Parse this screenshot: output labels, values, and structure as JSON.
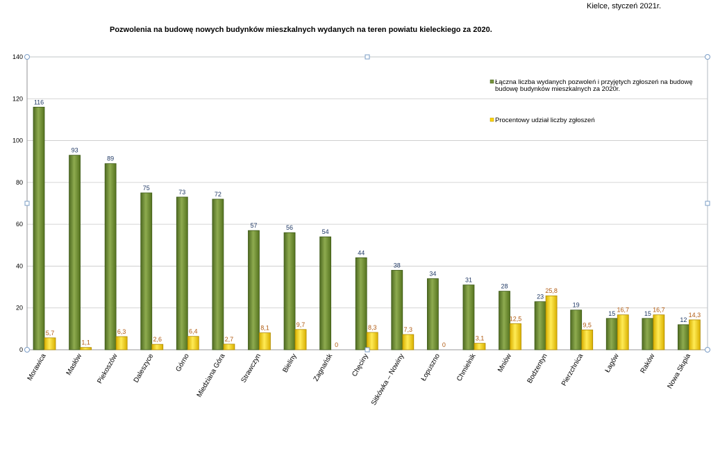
{
  "header": {
    "date_text": "Kielce, styczeń 2021r.",
    "title": "Pozwolenia na budowę nowych budynków  mieszkalnych wydanych na teren powiatu kieleckiego za 2020."
  },
  "colors": {
    "green": "#76923c",
    "green_dark": "#3e5a18",
    "yellow": "#ffd700",
    "yellow_dark": "#b08a00",
    "grid": "#c8c8c8",
    "label_green": "#1f3864",
    "label_yellow": "#b05a10"
  },
  "chart_data": {
    "type": "bar",
    "title": "Pozwolenia na budowę nowych budynków  mieszkalnych wydanych na teren powiatu kieleckiego za 2020.",
    "ylim": [
      0,
      140
    ],
    "yticks": [
      0,
      20,
      40,
      60,
      80,
      100,
      120,
      140
    ],
    "grid": true,
    "legend_position": "top-right",
    "categories": [
      "Morawica",
      "Masłów",
      "Piekoszów",
      "Daleszyce",
      "Górno",
      "Miedziana Góra",
      "Strawczyn",
      "Bieliny",
      "Zagnańsk",
      "Chęciny",
      "Sitkówka – Nowiny",
      "Łopuszno",
      "Chmielnik",
      "Mniów",
      "Bodzentyn",
      "Pierzchnica",
      "Łagów",
      "Raków",
      "Nowa Słupia"
    ],
    "series": [
      {
        "name": "Łączna liczba wydanych pozwoleń i przyjętych zgłoszeń na budowę budowę budynków mieszkalnych za 2020r.",
        "legend_lines": [
          "Łączna liczba wydanych pozwoleń i przyjętych zgłoszeń na budowę",
          "budowę budynków mieszkalnych za 2020r."
        ],
        "values": [
          116,
          93,
          89,
          75,
          73,
          72,
          57,
          56,
          54,
          44,
          38,
          34,
          31,
          28,
          23,
          19,
          15,
          15,
          12
        ],
        "labels": [
          "116",
          "93",
          "89",
          "75",
          "73",
          "72",
          "57",
          "56",
          "54",
          "44",
          "38",
          "34",
          "31",
          "28",
          "23",
          "19",
          "15",
          "15",
          "12"
        ]
      },
      {
        "name": "Procentowy udział liczby zgłoszeń",
        "legend_lines": [
          "Procentowy udział liczby zgłoszeń"
        ],
        "values": [
          5.7,
          1.1,
          6.3,
          2.6,
          6.4,
          2.7,
          8.1,
          9.7,
          0,
          8.3,
          7.3,
          0,
          3.1,
          12.5,
          25.8,
          9.5,
          16.7,
          16.7,
          14.3
        ],
        "labels": [
          "5,7",
          "1,1",
          "6,3",
          "2,6",
          "6,4",
          "2,7",
          "8,1",
          "9,7",
          "0",
          "8,3",
          "7,3",
          "0",
          "3,1",
          "12,5",
          "25,8",
          "9,5",
          "16,7",
          "16,7",
          "14,3"
        ]
      }
    ]
  }
}
